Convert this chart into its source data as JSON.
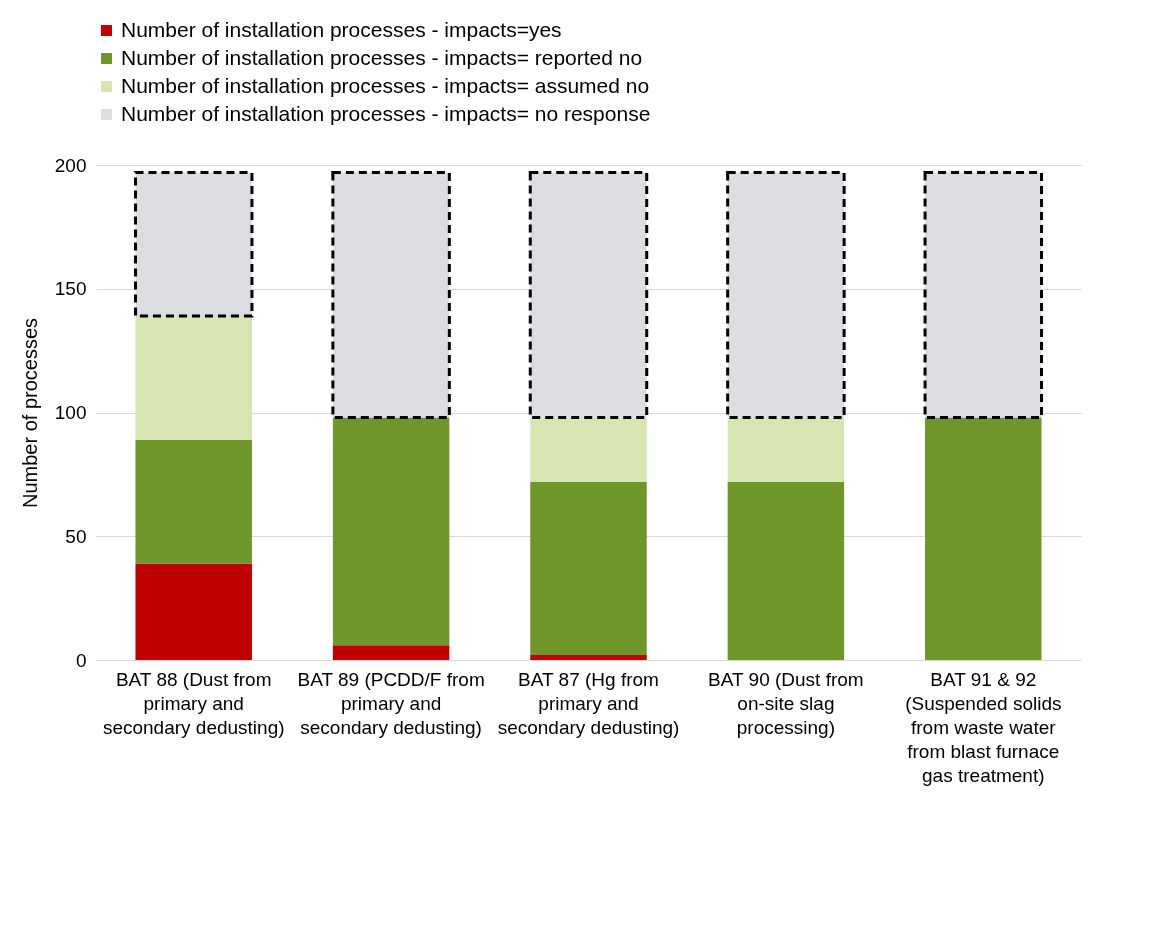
{
  "chart_data": {
    "type": "bar",
    "stacked": true,
    "ylabel": "Number of processes",
    "categories": [
      "BAT 88 (Dust from primary and secondary dedusting)",
      "BAT 89 (PCDD/F from primary and secondary dedusting)",
      "BAT 87 (Hg from primary and secondary dedusting)",
      "BAT 90 (Dust from on-site slag processing)",
      "BAT 91 & 92 (Suspended solids from waste water from blast furnace gas treatment)"
    ],
    "series": [
      {
        "name": "Number of installation processes - impacts=yes",
        "color": "#c00000",
        "values": [
          39,
          6,
          2,
          0,
          0
        ]
      },
      {
        "name": "Number of installation processes - impacts= reported no",
        "color": "#6f962a",
        "values": [
          50,
          92,
          70,
          72,
          98
        ]
      },
      {
        "name": "Number of installation processes - impacts= assumed no",
        "color": "#d7e6b1",
        "values": [
          50,
          0,
          26,
          26,
          0
        ]
      },
      {
        "name": "Number of installation processes - impacts= no response",
        "color": "#dcdde0",
        "line_style": "dashed",
        "values": [
          58,
          99,
          99,
          99,
          99
        ]
      }
    ],
    "ylim": [
      0,
      200
    ],
    "yticks": [
      0,
      50,
      100,
      150,
      200
    ],
    "grid": "y",
    "legend": "top"
  }
}
